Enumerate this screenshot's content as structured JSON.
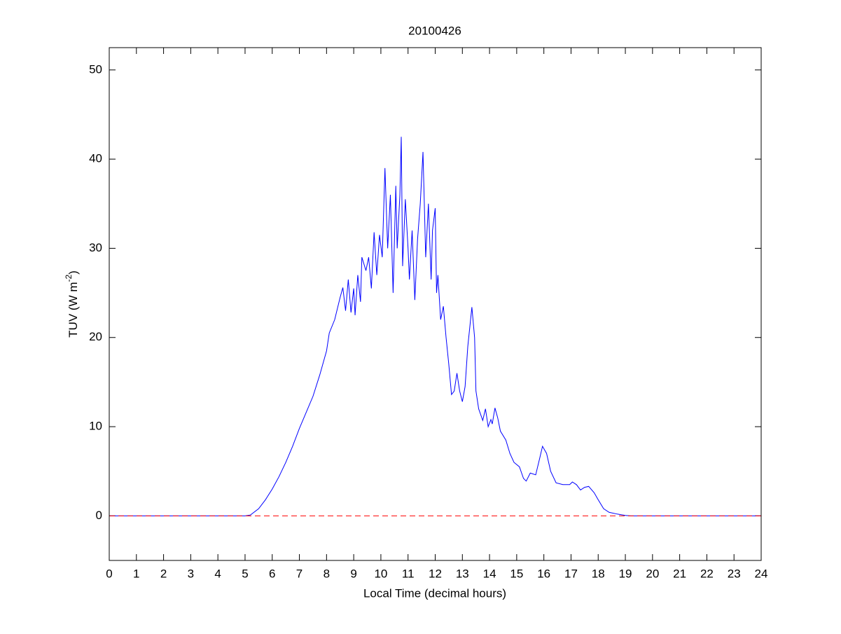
{
  "chart_data": {
    "type": "line",
    "title": "20100426",
    "xlabel": "Local Time (decimal hours)",
    "ylabel": {
      "text": "TUV (W m",
      "superscript": "-2",
      "suffix": ")"
    },
    "x": [
      0,
      5.0,
      5.2,
      5.5,
      5.75,
      6.0,
      6.25,
      6.5,
      6.75,
      7.0,
      7.25,
      7.5,
      7.75,
      8.0,
      8.1,
      8.3,
      8.5,
      8.6,
      8.7,
      8.8,
      8.9,
      9.0,
      9.05,
      9.15,
      9.25,
      9.3,
      9.45,
      9.55,
      9.65,
      9.75,
      9.85,
      9.95,
      10.05,
      10.15,
      10.25,
      10.35,
      10.45,
      10.55,
      10.6,
      10.7,
      10.75,
      10.8,
      10.9,
      11.0,
      11.05,
      11.15,
      11.25,
      11.35,
      11.45,
      11.55,
      11.65,
      11.75,
      11.85,
      11.9,
      12.0,
      12.05,
      12.1,
      12.2,
      12.3,
      12.4,
      12.5,
      12.6,
      12.7,
      12.8,
      12.9,
      13.0,
      13.1,
      13.2,
      13.35,
      13.45,
      13.5,
      13.6,
      13.75,
      13.85,
      13.95,
      14.05,
      14.1,
      14.2,
      14.3,
      14.4,
      14.6,
      14.75,
      14.9,
      15.1,
      15.25,
      15.35,
      15.5,
      15.7,
      15.85,
      15.95,
      16.1,
      16.25,
      16.45,
      16.7,
      16.95,
      17.05,
      17.2,
      17.35,
      17.5,
      17.65,
      17.85,
      18.0,
      18.2,
      18.4,
      18.7,
      19.0,
      19.2,
      24
    ],
    "series": [
      {
        "color": "#0000ff",
        "values": [
          0,
          0,
          0.1,
          0.8,
          1.8,
          3.0,
          4.4,
          6.0,
          7.8,
          9.8,
          11.6,
          13.4,
          15.8,
          18.5,
          20.5,
          22,
          24.5,
          25.6,
          23,
          26.5,
          22.8,
          25.5,
          22.5,
          27,
          24,
          29,
          27.5,
          29,
          25.5,
          31.8,
          27,
          31.5,
          29,
          39,
          30,
          36,
          25,
          37,
          30,
          36,
          42.5,
          28,
          35.5,
          30,
          26.5,
          32,
          24.2,
          31,
          35,
          40.8,
          29,
          35,
          26.5,
          32,
          34.5,
          25,
          27,
          22,
          23.5,
          20,
          17,
          13.6,
          14,
          16,
          14,
          12.8,
          14.5,
          19,
          23.4,
          20,
          14,
          12,
          10.7,
          12,
          10,
          10.8,
          10.3,
          12.1,
          11,
          9.5,
          8.5,
          7,
          6,
          5.5,
          4.2,
          3.9,
          4.8,
          4.6,
          6.5,
          7.8,
          7,
          5,
          3.7,
          3.5,
          3.5,
          3.8,
          3.5,
          2.9,
          3.2,
          3.3,
          2.6,
          1.8,
          0.8,
          0.4,
          0.2,
          0.05,
          0,
          0
        ]
      }
    ],
    "reference_line": {
      "x": [
        0,
        24
      ],
      "values": [
        0,
        0
      ],
      "color": "#ff0000",
      "dashed": true
    },
    "xlim": [
      0,
      24
    ],
    "xticks": [
      0,
      1,
      2,
      3,
      4,
      5,
      6,
      7,
      8,
      9,
      10,
      11,
      12,
      13,
      14,
      15,
      16,
      17,
      18,
      19,
      20,
      21,
      22,
      23,
      24
    ],
    "ylim": [
      -5,
      52.5
    ],
    "yticks": [
      0,
      10,
      20,
      30,
      40,
      50
    ],
    "grid": false
  }
}
